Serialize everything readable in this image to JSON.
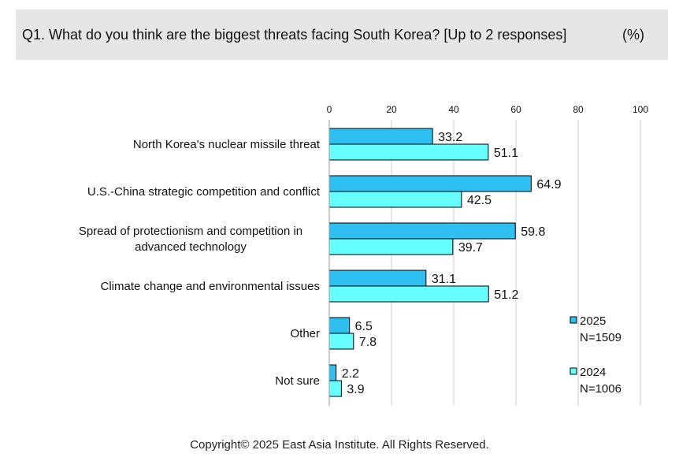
{
  "header": {
    "title": "Q1. What do you think are the biggest threats facing South Korea? [Up to 2 responses]",
    "unit": "(%)"
  },
  "colors": {
    "series_2025": "#2ec0f0",
    "series_2024": "#66ffff",
    "bar_edge": "#000000",
    "grid": "#cccccc"
  },
  "chart_data": {
    "type": "bar",
    "orientation": "horizontal",
    "title": "Q1. What do you think are the biggest threats facing South Korea? [Up to 2 responses]",
    "unit": "(%)",
    "categories": [
      [
        "North Korea's nuclear missile threat"
      ],
      [
        "U.S.-China strategic competition and conflict"
      ],
      [
        "Spread of protectionism and competition in",
        "advanced technology"
      ],
      [
        "Climate change and environmental issues"
      ],
      [
        "Other"
      ],
      [
        "Not sure"
      ]
    ],
    "series": [
      {
        "name": "2025",
        "note": "N=1509",
        "values": [
          33.2,
          64.9,
          59.8,
          31.1,
          6.5,
          2.2
        ]
      },
      {
        "name": "2024",
        "note": "N=1006",
        "values": [
          51.1,
          42.5,
          39.7,
          51.2,
          7.8,
          3.9
        ]
      }
    ],
    "xlim": [
      0,
      100
    ],
    "ticks": [
      0,
      20,
      40,
      60,
      80,
      100
    ],
    "grid": true,
    "axis_position": "top",
    "legend_position": "bottom-right"
  },
  "footer": {
    "copyright": "Copyright© 2025 East Asia Institute. All Rights Reserved."
  }
}
